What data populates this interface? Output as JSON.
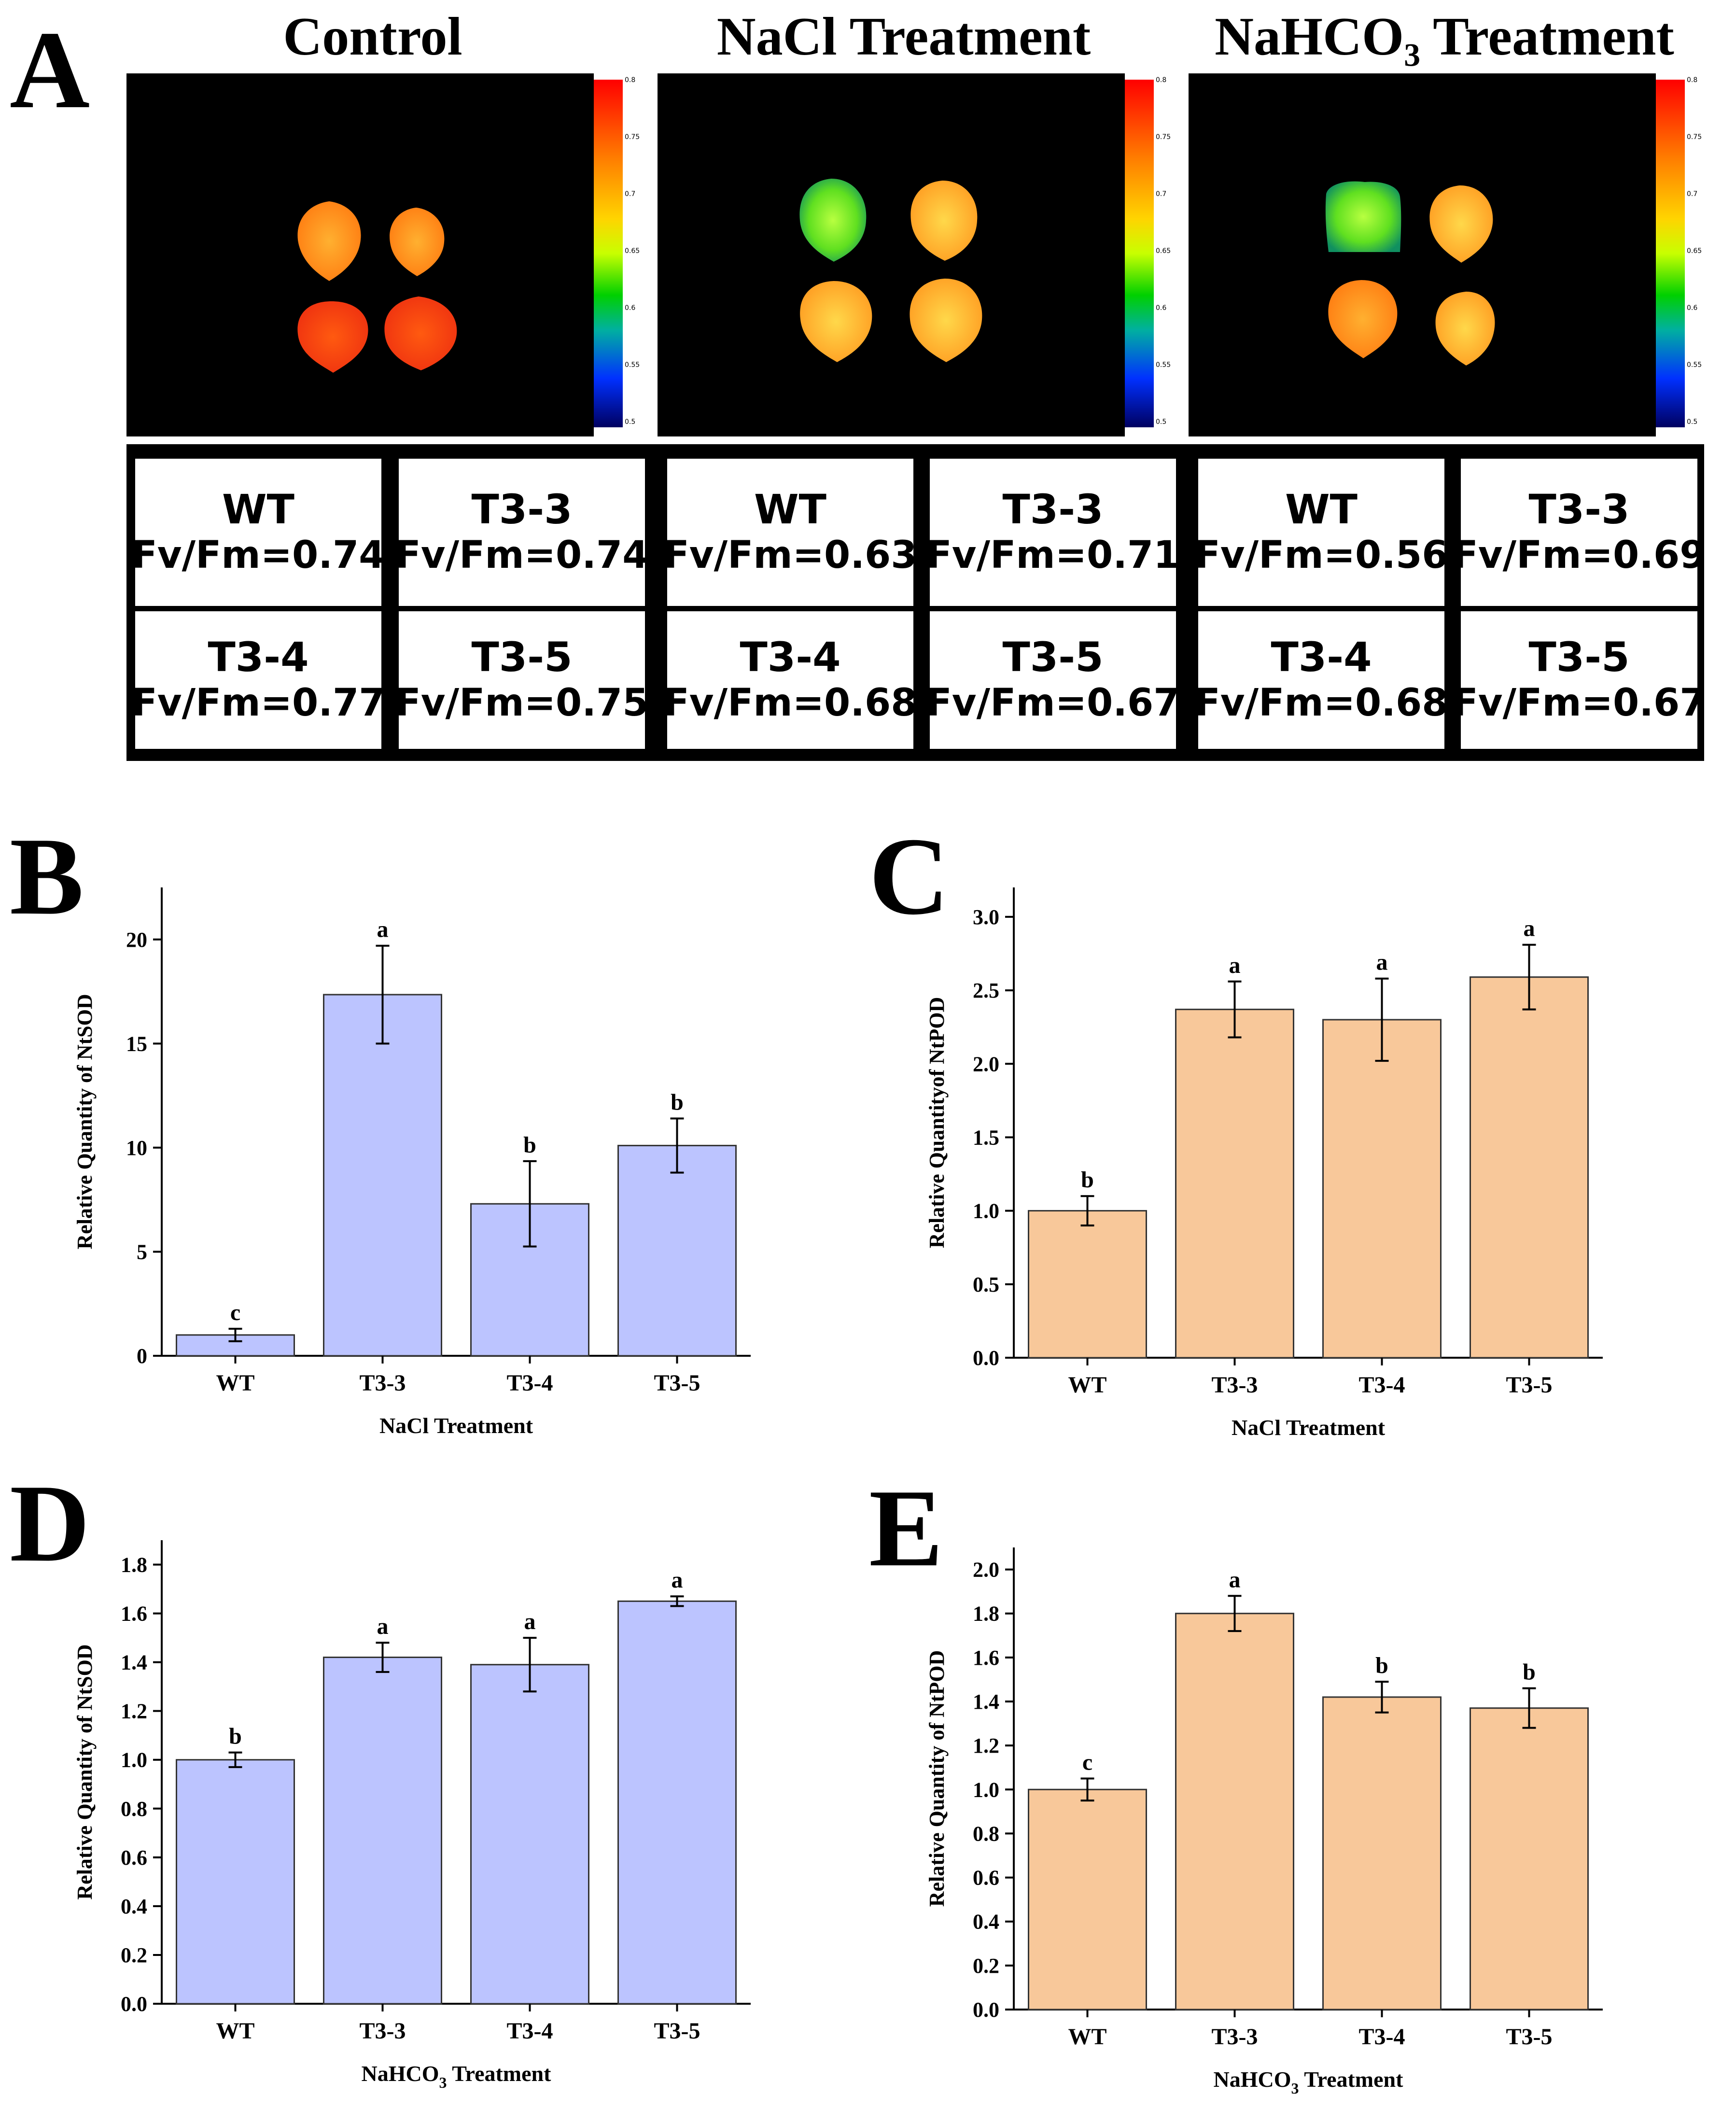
{
  "panel_a": {
    "letter": "A",
    "conditions": [
      {
        "title": "Control"
      },
      {
        "title": "NaCl Treatment"
      },
      {
        "title_pre": "NaHCO",
        "title_sub": "3",
        "title_post": " Treatment"
      }
    ],
    "colorbar_ticks": [
      "0.8",
      "0.75",
      "0.7",
      "0.65",
      "0.6",
      "0.55",
      "0.5"
    ],
    "fvfm_prefix": "Fv/Fm=",
    "groups": [
      {
        "cells": [
          {
            "name": "WT",
            "value": "0.74"
          },
          {
            "name": "T3-3",
            "value": "0.74"
          },
          {
            "name": "T3-4",
            "value": "0.77"
          },
          {
            "name": "T3-5",
            "value": "0.75"
          }
        ]
      },
      {
        "cells": [
          {
            "name": "WT",
            "value": "0.63"
          },
          {
            "name": "T3-3",
            "value": "0.71"
          },
          {
            "name": "T3-4",
            "value": "0.68"
          },
          {
            "name": "T3-5",
            "value": "0.67"
          }
        ]
      },
      {
        "cells": [
          {
            "name": "WT",
            "value": "0.56"
          },
          {
            "name": "T3-3",
            "value": "0.69"
          },
          {
            "name": "T3-4",
            "value": "0.68"
          },
          {
            "name": "T3-5",
            "value": "0.67"
          }
        ]
      }
    ]
  },
  "chart_data": [
    {
      "panel": "B",
      "type": "bar",
      "color": "#bcc4ff",
      "categories": [
        "WT",
        "T3-3",
        "T3-4",
        "T3-5"
      ],
      "values": [
        1.0,
        17.35,
        7.3,
        10.1
      ],
      "errors": [
        0.3,
        2.35,
        2.05,
        1.3
      ],
      "letters": [
        "c",
        "a",
        "b",
        "b"
      ],
      "ylabel": "Relative Quantity of NtSOD",
      "xlabel": {
        "pre": "NaCl Treatment",
        "sub": "",
        "post": ""
      },
      "ylim": [
        0,
        22.5
      ],
      "yticks": [
        0,
        5,
        10,
        15,
        20
      ],
      "ytick_labels": [
        "0",
        "5",
        "10",
        "15",
        "20"
      ]
    },
    {
      "panel": "C",
      "type": "bar",
      "color": "#f8c89a",
      "categories": [
        "WT",
        "T3-3",
        "T3-4",
        "T3-5"
      ],
      "values": [
        1.0,
        2.37,
        2.3,
        2.59
      ],
      "errors": [
        0.1,
        0.19,
        0.28,
        0.22
      ],
      "letters": [
        "b",
        "a",
        "a",
        "a"
      ],
      "ylabel": "Relative Quantityof NtPOD",
      "xlabel": {
        "pre": "NaCl Treatment",
        "sub": "",
        "post": ""
      },
      "ylim": [
        0,
        3.2
      ],
      "yticks": [
        0,
        0.5,
        1.0,
        1.5,
        2.0,
        2.5,
        3.0
      ],
      "ytick_labels": [
        "0.0",
        "0.5",
        "1.0",
        "1.5",
        "2.0",
        "2.5",
        "3.0"
      ]
    },
    {
      "panel": "D",
      "type": "bar",
      "color": "#bcc4ff",
      "categories": [
        "WT",
        "T3-3",
        "T3-4",
        "T3-5"
      ],
      "values": [
        1.0,
        1.42,
        1.39,
        1.65
      ],
      "errors": [
        0.03,
        0.06,
        0.11,
        0.02
      ],
      "letters": [
        "b",
        "a",
        "a",
        "a"
      ],
      "ylabel": "Relative Quantity of NtSOD",
      "xlabel": {
        "pre": "NaHCO",
        "sub": "3",
        "post": " Treatment"
      },
      "ylim": [
        0,
        1.9
      ],
      "yticks": [
        0,
        0.2,
        0.4,
        0.6,
        0.8,
        1.0,
        1.2,
        1.4,
        1.6,
        1.8
      ],
      "ytick_labels": [
        "0.0",
        "0.2",
        "0.4",
        "0.6",
        "0.8",
        "1.0",
        "1.2",
        "1.4",
        "1.6",
        "1.8"
      ]
    },
    {
      "panel": "E",
      "type": "bar",
      "color": "#f8c89a",
      "categories": [
        "WT",
        "T3-3",
        "T3-4",
        "T3-5"
      ],
      "values": [
        1.0,
        1.8,
        1.42,
        1.37
      ],
      "errors": [
        0.05,
        0.08,
        0.07,
        0.09
      ],
      "letters": [
        "c",
        "a",
        "b",
        "b"
      ],
      "ylabel": "Relative Quantity of NtPOD",
      "xlabel": {
        "pre": "NaHCO",
        "sub": "3",
        "post": " Treatment"
      },
      "ylim": [
        0,
        2.1
      ],
      "yticks": [
        0,
        0.2,
        0.4,
        0.6,
        0.8,
        1.0,
        1.2,
        1.4,
        1.6,
        1.8,
        2.0
      ],
      "ytick_labels": [
        "0.0",
        "0.2",
        "0.4",
        "0.6",
        "0.8",
        "1.0",
        "1.2",
        "1.4",
        "1.6",
        "1.8",
        "2.0"
      ]
    }
  ]
}
